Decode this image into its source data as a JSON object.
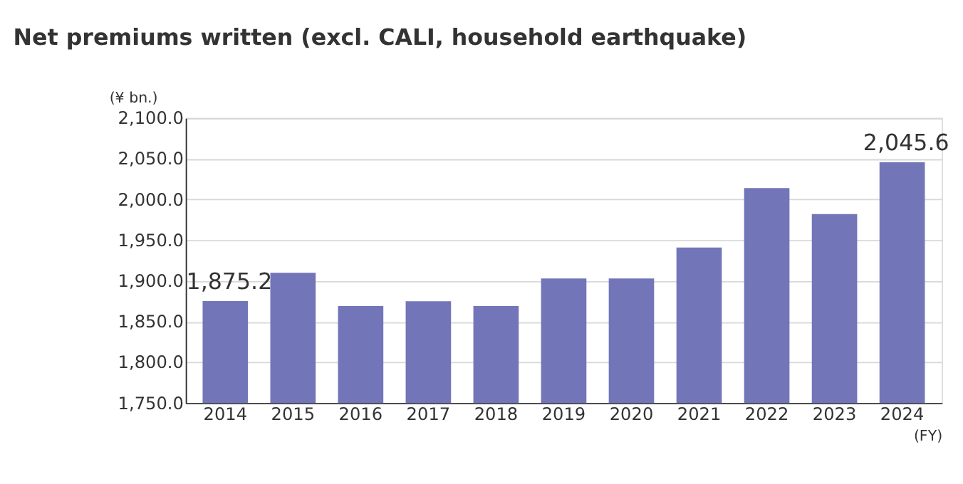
{
  "chart_data": {
    "type": "bar",
    "title": "Net premiums written (excl. CALI, household earthquake)",
    "ylabel": "(¥ bn.)",
    "xlabel": "(FY)",
    "categories": [
      "2014",
      "2015",
      "2016",
      "2017",
      "2018",
      "2019",
      "2020",
      "2021",
      "2022",
      "2023",
      "2024"
    ],
    "values": [
      1875.2,
      1910,
      1869,
      1875,
      1869,
      1903,
      1903,
      1941,
      2014,
      1982,
      2045.6
    ],
    "value_labels": [
      "1,875.2",
      null,
      null,
      null,
      null,
      null,
      null,
      null,
      null,
      null,
      "2,045.6"
    ],
    "color": "#7275b8",
    "ylim": [
      1750,
      2100
    ],
    "yticks": [
      {
        "value": 1750,
        "label": "1,750.0"
      },
      {
        "value": 1800,
        "label": "1,800.0"
      },
      {
        "value": 1850,
        "label": "1,850.0"
      },
      {
        "value": 1900,
        "label": "1,900.0"
      },
      {
        "value": 1950,
        "label": "1,950.0"
      },
      {
        "value": 2000,
        "label": "2,000.0"
      },
      {
        "value": 2050,
        "label": "2,050.0"
      },
      {
        "value": 2100,
        "label": "2,100.0"
      }
    ],
    "grid": "y"
  }
}
